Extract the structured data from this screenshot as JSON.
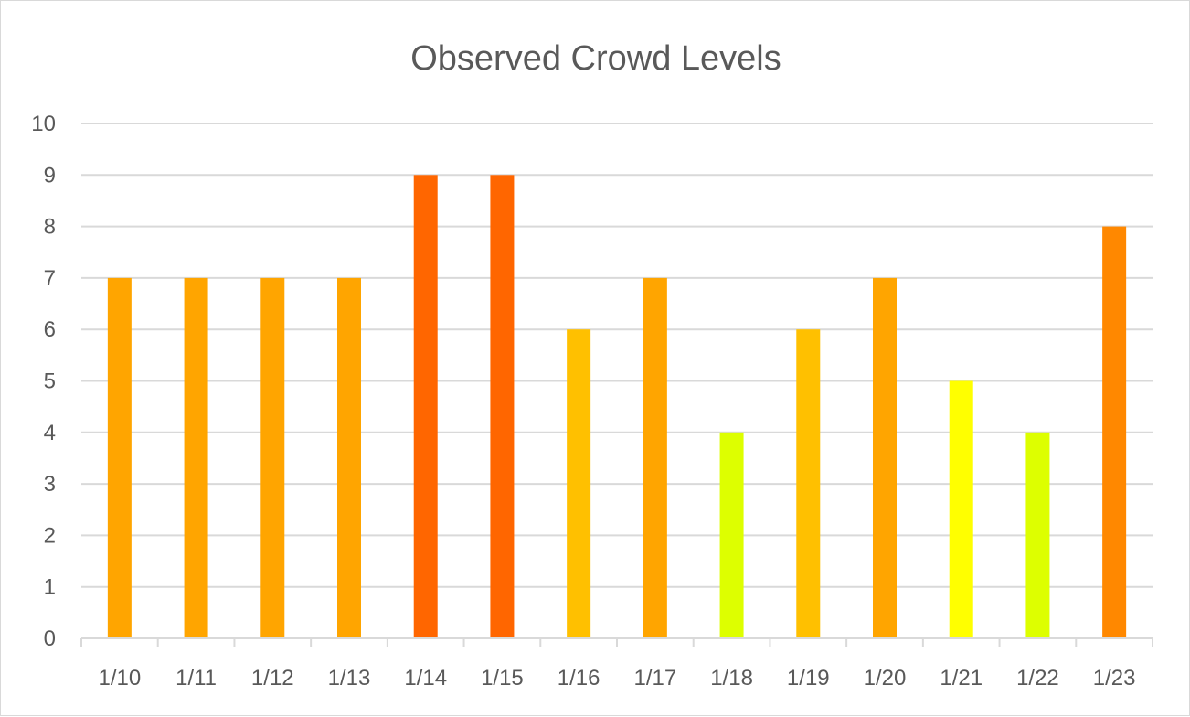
{
  "chart_data": {
    "type": "bar",
    "title": "Observed Crowd Levels",
    "xlabel": "",
    "ylabel": "",
    "categories": [
      "1/10",
      "1/11",
      "1/12",
      "1/13",
      "1/14",
      "1/15",
      "1/16",
      "1/17",
      "1/18",
      "1/19",
      "1/20",
      "1/21",
      "1/22",
      "1/23"
    ],
    "values": [
      7,
      7,
      7,
      7,
      9,
      9,
      6,
      7,
      4,
      6,
      7,
      5,
      4,
      8
    ],
    "bar_colors": [
      "#ffa500",
      "#ffa500",
      "#ffa500",
      "#ffa500",
      "#ff6600",
      "#ff6600",
      "#ffc000",
      "#ffa500",
      "#ddff00",
      "#ffc000",
      "#ffa500",
      "#ffff00",
      "#ddff00",
      "#ff8800"
    ],
    "ylim": [
      0,
      10
    ],
    "yticks": [
      0,
      1,
      2,
      3,
      4,
      5,
      6,
      7,
      8,
      9,
      10
    ],
    "grid": true,
    "legend": "none"
  }
}
